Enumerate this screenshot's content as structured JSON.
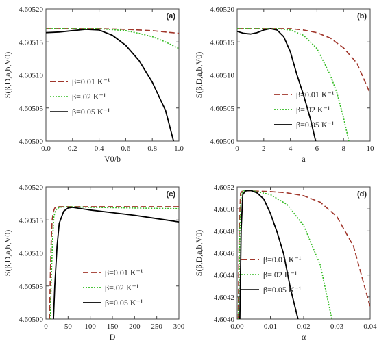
{
  "chart_data": [
    {
      "panel": "(a)",
      "type": "line",
      "xlabel": "V0/b",
      "ylabel": "S(β,D,a,b,V0)",
      "xlim": [
        0,
        1
      ],
      "ylim": [
        4.605,
        4.6052
      ],
      "x_ticks": [
        "0.0",
        "0.2",
        "0.4",
        "0.6",
        "0.8",
        "1.0"
      ],
      "y_ticks": [
        "4.60500",
        "4.60505",
        "4.60510",
        "4.60515",
        "4.60520"
      ],
      "legend_position": "center-left",
      "series": [
        {
          "name": "β=0.01 K⁻¹",
          "color": "#a0352a",
          "dash": "dashed",
          "x": [
            0,
            0.2,
            0.4,
            0.6,
            0.8,
            0.9,
            1.0
          ],
          "y": [
            4.60517,
            4.60517,
            4.60517,
            4.605169,
            4.605167,
            4.605165,
            4.605163
          ]
        },
        {
          "name": "β=.02 K⁻¹",
          "color": "#33bb22",
          "dash": "dotted",
          "x": [
            0,
            0.2,
            0.4,
            0.6,
            0.7,
            0.8,
            0.9,
            1.0
          ],
          "y": [
            4.60517,
            4.60517,
            4.60517,
            4.605167,
            4.605163,
            4.605158,
            4.60515,
            4.60514
          ]
        },
        {
          "name": "β=0.05 K⁻¹",
          "color": "#000000",
          "dash": "solid",
          "x": [
            0,
            0.1,
            0.2,
            0.3,
            0.4,
            0.5,
            0.6,
            0.7,
            0.8,
            0.9,
            0.96
          ],
          "y": [
            4.605164,
            4.605165,
            4.605167,
            4.605169,
            4.605168,
            4.60516,
            4.605145,
            4.605122,
            4.605089,
            4.605046,
            4.605
          ]
        }
      ]
    },
    {
      "panel": "(b)",
      "type": "line",
      "xlabel": "a",
      "ylabel": "S(β,D,a,b,V0)",
      "xlim": [
        0,
        10
      ],
      "ylim": [
        4.605,
        4.6052
      ],
      "x_ticks": [
        "0",
        "2",
        "4",
        "6",
        "8",
        "10"
      ],
      "y_ticks": [
        "4.60500",
        "4.60505",
        "4.60510",
        "4.60515",
        "4.60520"
      ],
      "legend_position": "bottom-right",
      "series": [
        {
          "name": "β=0.01 K⁻¹",
          "color": "#a0352a",
          "dash": "dashed",
          "x": [
            0,
            2,
            4,
            5,
            6,
            7,
            8,
            9,
            10
          ],
          "y": [
            4.60517,
            4.60517,
            4.60517,
            4.605168,
            4.605164,
            4.605156,
            4.605141,
            4.605118,
            4.605072
          ]
        },
        {
          "name": "β=.02 K⁻¹",
          "color": "#33bb22",
          "dash": "dotted",
          "x": [
            0,
            2,
            3,
            4,
            5,
            6,
            7,
            7.5,
            8,
            8.4
          ],
          "y": [
            4.60517,
            4.60517,
            4.60517,
            4.605168,
            4.60516,
            4.60514,
            4.6051,
            4.605073,
            4.605035,
            4.605
          ]
        },
        {
          "name": "β=0.05 K⁻¹",
          "color": "#000000",
          "dash": "solid",
          "x": [
            0,
            0.5,
            1,
            1.5,
            2,
            2.5,
            3,
            3.5,
            4,
            4.5,
            5,
            5.5,
            5.9
          ],
          "y": [
            4.605166,
            4.605163,
            4.605162,
            4.605164,
            4.605168,
            4.60517,
            4.605168,
            4.605158,
            4.605135,
            4.6051,
            4.605069,
            4.605034,
            4.605
          ]
        }
      ]
    },
    {
      "panel": "(c)",
      "type": "line",
      "xlabel": "D",
      "ylabel": "S(β,D,a,b,V0)",
      "xlim": [
        0,
        300
      ],
      "ylim": [
        4.605,
        4.6052
      ],
      "x_ticks": [
        "0",
        "50",
        "100",
        "150",
        "200",
        "250",
        "300"
      ],
      "y_ticks": [
        "4.60500",
        "4.60505",
        "4.60510",
        "4.60515",
        "4.60520"
      ],
      "legend_position": "bottom-right",
      "series": [
        {
          "name": "β=0.01 K⁻¹",
          "color": "#a0352a",
          "dash": "dashed",
          "x": [
            8,
            10,
            12,
            14,
            17,
            20,
            30,
            50,
            100,
            150,
            200,
            250,
            300
          ],
          "y": [
            4.605,
            4.60507,
            4.60512,
            4.60515,
            4.605163,
            4.605168,
            4.60517,
            4.60517,
            4.60517,
            4.60517,
            4.60517,
            4.60517,
            4.60517
          ]
        },
        {
          "name": "β=.02 K⁻¹",
          "color": "#33bb22",
          "dash": "dotted",
          "x": [
            10,
            12,
            15,
            18,
            22,
            30,
            50,
            100,
            200,
            300
          ],
          "y": [
            4.605,
            4.60506,
            4.60512,
            4.605155,
            4.605165,
            4.605169,
            4.60517,
            4.605169,
            4.605168,
            4.605167
          ]
        },
        {
          "name": "β=0.05 K⁻¹",
          "color": "#000000",
          "dash": "solid",
          "x": [
            17,
            20,
            25,
            30,
            40,
            50,
            60,
            100,
            150,
            200,
            250,
            300
          ],
          "y": [
            4.605,
            4.60505,
            4.60511,
            4.605145,
            4.605163,
            4.605168,
            4.605169,
            4.605165,
            4.605161,
            4.605157,
            4.605152,
            4.605147
          ]
        }
      ]
    },
    {
      "panel": "(d)",
      "type": "line",
      "xlabel": "α",
      "ylabel": "S(β,D,a,b,V0)",
      "xlim": [
        0,
        0.04
      ],
      "ylim": [
        4.604,
        4.6052
      ],
      "x_ticks": [
        "0.00",
        "0.01",
        "0.02",
        "0.03",
        "0.04"
      ],
      "y_ticks": [
        "4.6040",
        "4.6042",
        "4.6044",
        "4.6046",
        "4.6048",
        "4.6050",
        "4.6052"
      ],
      "legend_position": "center-left",
      "series": [
        {
          "name": "β=0.01 K⁻¹",
          "color": "#a0352a",
          "dash": "dashed",
          "x": [
            0.0003,
            0.0006,
            0.001,
            0.0015,
            0.0025,
            0.005,
            0.01,
            0.015,
            0.02,
            0.025,
            0.03,
            0.035,
            0.04
          ],
          "y": [
            4.604,
            4.6048,
            4.60514,
            4.60516,
            4.605165,
            4.605163,
            4.605158,
            4.605145,
            4.60512,
            4.60506,
            4.60493,
            4.60466,
            4.60411
          ]
        },
        {
          "name": "β=.02 K⁻¹",
          "color": "#33bb22",
          "dash": "dotted",
          "x": [
            0.0004,
            0.0008,
            0.0012,
            0.002,
            0.003,
            0.005,
            0.01,
            0.015,
            0.02,
            0.025,
            0.0285
          ],
          "y": [
            4.604,
            4.6048,
            4.60513,
            4.605163,
            4.605167,
            4.605163,
            4.60513,
            4.60504,
            4.60485,
            4.60449,
            4.604
          ]
        },
        {
          "name": "β=0.05 K⁻¹",
          "color": "#000000",
          "dash": "solid",
          "x": [
            0.0008,
            0.0012,
            0.0017,
            0.0025,
            0.004,
            0.006,
            0.008,
            0.01,
            0.012,
            0.014,
            0.016,
            0.0183
          ],
          "y": [
            4.604,
            4.6048,
            4.60513,
            4.605163,
            4.605168,
            4.605145,
            4.60509,
            4.60496,
            4.60479,
            4.60459,
            4.60428,
            4.604
          ]
        }
      ]
    }
  ]
}
